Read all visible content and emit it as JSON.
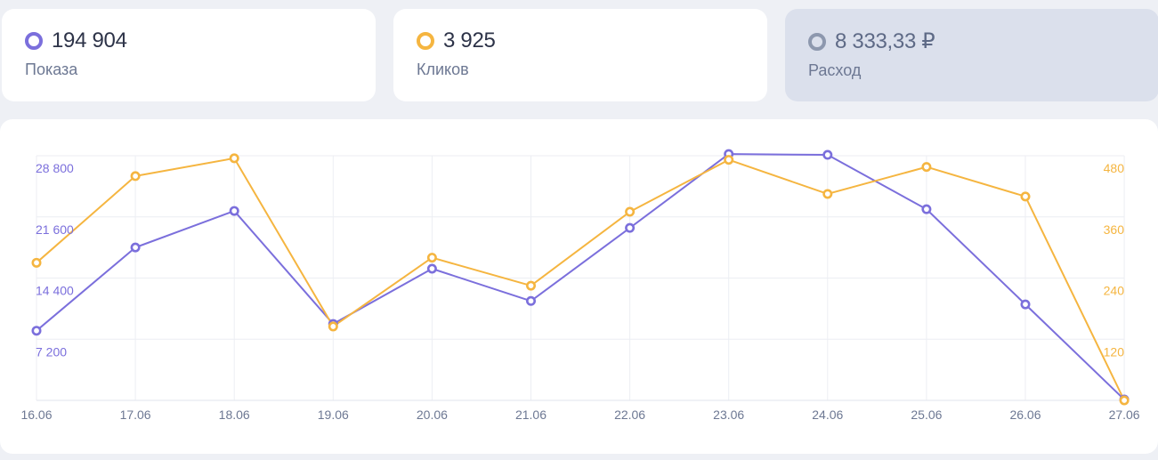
{
  "metrics": [
    {
      "value": "194 904",
      "label": "Показа",
      "color": "#7b6fdc",
      "active": true
    },
    {
      "value": "3 925",
      "label": "Кликов",
      "color": "#f5b540",
      "active": true
    },
    {
      "value": "8 333,33 ₽",
      "label": "Расход",
      "color": "#8d98ae",
      "active": false
    }
  ],
  "chart_data": {
    "type": "line",
    "x": [
      "16.06",
      "17.06",
      "18.06",
      "19.06",
      "20.06",
      "21.06",
      "22.06",
      "23.06",
      "24.06",
      "25.06",
      "26.06",
      "27.06"
    ],
    "series": [
      {
        "axis": "left",
        "color": "#7b6fdc",
        "values": [
          8200,
          18000,
          22300,
          9000,
          15500,
          11700,
          20300,
          29000,
          28900,
          22500,
          11300,
          100
        ]
      },
      {
        "axis": "right",
        "color": "#f5b540",
        "values": [
          270,
          440,
          475,
          145,
          280,
          225,
          370,
          472,
          405,
          458,
          400,
          0
        ]
      }
    ],
    "left_axis": {
      "ticks": [
        7200,
        14400,
        21600,
        28800
      ],
      "tick_labels": [
        "7 200",
        "14 400",
        "21 600",
        "28 800"
      ],
      "range": [
        0,
        28800
      ]
    },
    "right_axis": {
      "ticks": [
        120,
        240,
        360,
        480
      ],
      "tick_labels": [
        "120",
        "240",
        "360",
        "480"
      ],
      "range": [
        0,
        480
      ]
    },
    "grid": true
  }
}
